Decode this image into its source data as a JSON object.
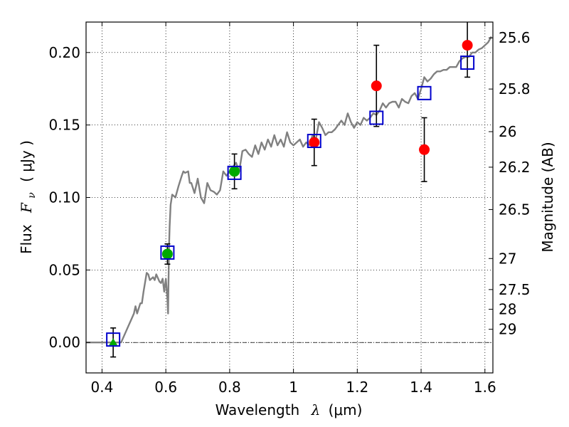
{
  "chart_data": {
    "type": "scatter",
    "title": "",
    "xlabel": "Wavelength",
    "xlabel_symbol": "λ",
    "xlabel_unit": "(μm)",
    "ylabel": "Flux",
    "ylabel_symbol": "F",
    "ylabel_subscript": "ν",
    "ylabel_unit": "( μJy )",
    "y2label": "Magnitude (AB)",
    "xlim": [
      0.35,
      1.625
    ],
    "ylim": [
      -0.021,
      0.221
    ],
    "grid": true,
    "x_ticks": [
      0.4,
      0.6,
      0.8,
      1.0,
      1.2,
      1.4,
      1.6
    ],
    "x_tick_labels": [
      "0.4",
      "0.6",
      "0.8",
      "1",
      "1.2",
      "1.4",
      "1.6"
    ],
    "y_ticks": [
      0.0,
      0.05,
      0.1,
      0.15,
      0.2
    ],
    "y_tick_labels": [
      "0.00",
      "0.05",
      "0.10",
      "0.15",
      "0.20"
    ],
    "y2_ticks": [
      {
        "label": "25.6",
        "flux": 0.2101
      },
      {
        "label": "25.8",
        "flux": 0.1748
      },
      {
        "label": "26",
        "flux": 0.1454
      },
      {
        "label": "26.2",
        "flux": 0.1209
      },
      {
        "label": "26.5",
        "flux": 0.0917
      },
      {
        "label": "27",
        "flux": 0.0579
      },
      {
        "label": "27.5",
        "flux": 0.0365
      },
      {
        "label": "28",
        "flux": 0.0229
      },
      {
        "label": "29",
        "flux": 0.0091
      }
    ],
    "series": [
      {
        "name": "model_spectrum",
        "kind": "line",
        "color": "#808080",
        "x": [
          0.35,
          0.44,
          0.445,
          0.46,
          0.48,
          0.49,
          0.5,
          0.505,
          0.51,
          0.52,
          0.525,
          0.53,
          0.54,
          0.545,
          0.55,
          0.56,
          0.565,
          0.57,
          0.58,
          0.585,
          0.59,
          0.595,
          0.6,
          0.605,
          0.607,
          0.61,
          0.612,
          0.615,
          0.62,
          0.63,
          0.64,
          0.65,
          0.655,
          0.66,
          0.67,
          0.675,
          0.68,
          0.69,
          0.7,
          0.71,
          0.72,
          0.73,
          0.74,
          0.75,
          0.76,
          0.77,
          0.78,
          0.79,
          0.8,
          0.81,
          0.82,
          0.83,
          0.84,
          0.85,
          0.86,
          0.87,
          0.88,
          0.89,
          0.9,
          0.91,
          0.92,
          0.93,
          0.94,
          0.95,
          0.96,
          0.97,
          0.98,
          0.99,
          1.0,
          1.01,
          1.02,
          1.03,
          1.04,
          1.05,
          1.06,
          1.07,
          1.08,
          1.09,
          1.1,
          1.11,
          1.12,
          1.13,
          1.14,
          1.15,
          1.16,
          1.17,
          1.18,
          1.19,
          1.2,
          1.21,
          1.22,
          1.23,
          1.24,
          1.25,
          1.26,
          1.27,
          1.28,
          1.29,
          1.3,
          1.31,
          1.32,
          1.33,
          1.34,
          1.35,
          1.36,
          1.37,
          1.38,
          1.39,
          1.4,
          1.41,
          1.42,
          1.43,
          1.44,
          1.45,
          1.46,
          1.47,
          1.48,
          1.49,
          1.5,
          1.51,
          1.52,
          1.53,
          1.54,
          1.55,
          1.56,
          1.57,
          1.58,
          1.59,
          1.6,
          1.61,
          1.62
        ],
        "y": [
          0.0,
          0.0,
          0.0,
          0.0,
          0.01,
          0.015,
          0.02,
          0.025,
          0.02,
          0.027,
          0.027,
          0.035,
          0.048,
          0.047,
          0.043,
          0.045,
          0.043,
          0.047,
          0.042,
          0.041,
          0.044,
          0.035,
          0.044,
          0.03,
          0.02,
          0.065,
          0.08,
          0.095,
          0.102,
          0.1,
          0.108,
          0.115,
          0.118,
          0.117,
          0.118,
          0.11,
          0.11,
          0.103,
          0.113,
          0.1,
          0.096,
          0.11,
          0.105,
          0.104,
          0.102,
          0.105,
          0.118,
          0.115,
          0.118,
          0.121,
          0.124,
          0.118,
          0.132,
          0.133,
          0.13,
          0.128,
          0.136,
          0.13,
          0.138,
          0.133,
          0.14,
          0.135,
          0.143,
          0.136,
          0.14,
          0.135,
          0.145,
          0.138,
          0.136,
          0.138,
          0.14,
          0.135,
          0.138,
          0.136,
          0.143,
          0.14,
          0.152,
          0.148,
          0.143,
          0.145,
          0.145,
          0.147,
          0.15,
          0.153,
          0.15,
          0.158,
          0.152,
          0.148,
          0.152,
          0.15,
          0.155,
          0.153,
          0.155,
          0.158,
          0.157,
          0.16,
          0.165,
          0.162,
          0.165,
          0.166,
          0.166,
          0.162,
          0.168,
          0.166,
          0.165,
          0.17,
          0.172,
          0.168,
          0.175,
          0.183,
          0.18,
          0.182,
          0.185,
          0.187,
          0.187,
          0.188,
          0.188,
          0.19,
          0.19,
          0.19,
          0.194,
          0.196,
          0.197,
          0.197,
          0.2,
          0.2,
          0.202,
          0.203,
          0.205,
          0.207,
          0.211
        ]
      },
      {
        "name": "model_photometry",
        "kind": "open_square",
        "color": "#0000cc",
        "x": [
          0.435,
          0.605,
          0.815,
          1.065,
          1.26,
          1.41,
          1.545
        ],
        "y": [
          0.002,
          0.062,
          0.117,
          0.139,
          0.155,
          0.172,
          0.193
        ]
      },
      {
        "name": "observed_optical",
        "kind": "circle",
        "color": "#00aa00",
        "x": [
          0.435,
          0.605,
          0.815
        ],
        "y": [
          0.0,
          0.061,
          0.118
        ],
        "err": [
          0.01,
          0.007,
          0.012
        ],
        "marker": [
          "triangle",
          "circle",
          "circle"
        ]
      },
      {
        "name": "observed_nir",
        "kind": "circle",
        "color": "#ff0000",
        "x": [
          1.065,
          1.26,
          1.41,
          1.545
        ],
        "y": [
          0.138,
          0.177,
          0.133,
          0.205
        ],
        "err": [
          0.016,
          0.028,
          0.022,
          0.022
        ]
      }
    ]
  }
}
